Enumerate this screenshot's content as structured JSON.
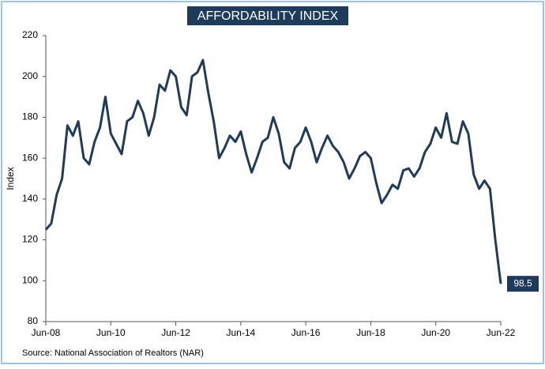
{
  "chart_data": {
    "type": "line",
    "title": "AFFORDABILITY INDEX",
    "y_label": "Index",
    "source": "Source: National Association of Realtors (NAR)",
    "categories": [
      "Jun-08",
      null,
      null,
      null,
      null,
      null,
      null,
      null,
      null,
      null,
      null,
      null,
      "Jun-10",
      null,
      null,
      null,
      null,
      null,
      null,
      null,
      null,
      null,
      null,
      null,
      "Jun-12",
      null,
      null,
      null,
      null,
      null,
      null,
      null,
      null,
      null,
      null,
      null,
      "Jun-14",
      null,
      null,
      null,
      null,
      null,
      null,
      null,
      null,
      null,
      null,
      null,
      "Jun-16",
      null,
      null,
      null,
      null,
      null,
      null,
      null,
      null,
      null,
      null,
      null,
      "Jun-18",
      null,
      null,
      null,
      null,
      null,
      null,
      null,
      null,
      null,
      null,
      null,
      "Jun-20",
      null,
      null,
      null,
      null,
      null,
      null,
      null,
      null,
      null,
      null,
      null,
      "Jun-22"
    ],
    "values": [
      125,
      128,
      142,
      150,
      176,
      171,
      178,
      160,
      157,
      168,
      175,
      190,
      172,
      167,
      162,
      178,
      180,
      188,
      182,
      171,
      180,
      196,
      193,
      203,
      200,
      185,
      181,
      200,
      202,
      208,
      192,
      178,
      160,
      165,
      171,
      168,
      173,
      162,
      153,
      160,
      168,
      170,
      180,
      172,
      158,
      155,
      165,
      168,
      175,
      168,
      158,
      165,
      171,
      166,
      163,
      158,
      150,
      155,
      161,
      163,
      160,
      148,
      138,
      142,
      147,
      145,
      154,
      155,
      151,
      155,
      163,
      167,
      175,
      170,
      182,
      168,
      167,
      178,
      172,
      152,
      145,
      149,
      145,
      120,
      98.5
    ],
    "color": "#1f3b5c",
    "ylim": [
      80,
      220
    ],
    "yticks": [
      80,
      100,
      120,
      140,
      160,
      180,
      200,
      220
    ],
    "grid": false
  }
}
